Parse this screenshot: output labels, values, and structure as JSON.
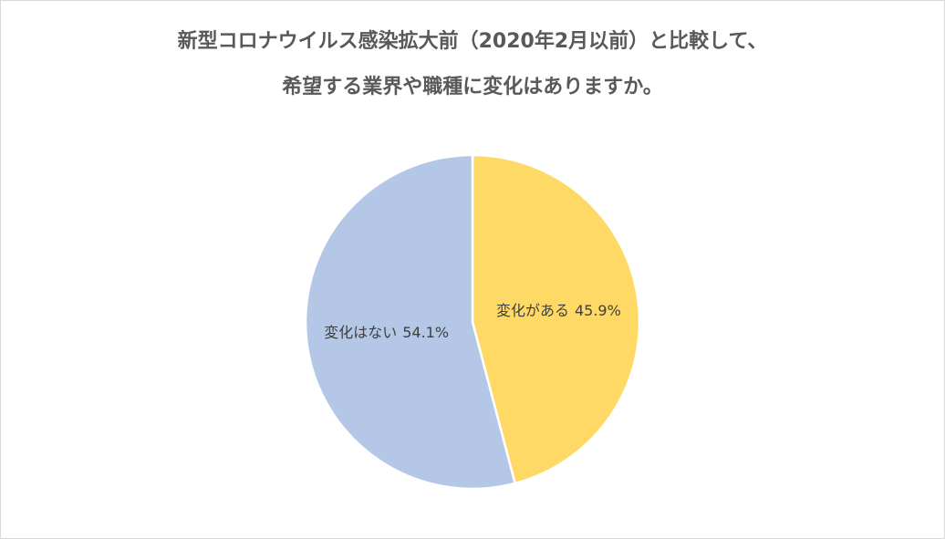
{
  "chart_data": {
    "type": "pie",
    "title": [
      "新型コロナウイルス感染拡大前（2020年2月以前）と比較して、",
      "希望する業界や職種に変化はありますか。"
    ],
    "categories": [
      "変化がある",
      "変化はない"
    ],
    "values": [
      45.9,
      54.1
    ],
    "value_labels": [
      "45.9%",
      "54.1%"
    ],
    "colors": [
      "#FFD966",
      "#B4C7E7"
    ]
  }
}
